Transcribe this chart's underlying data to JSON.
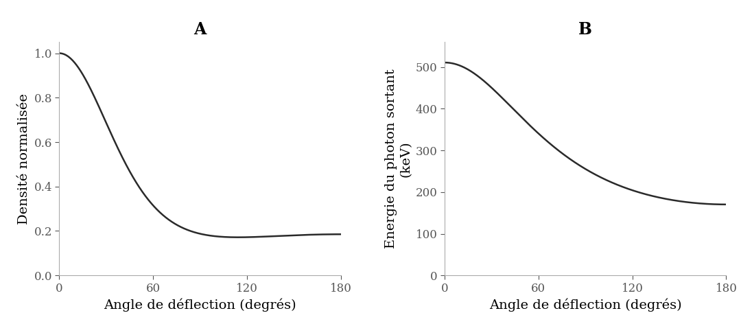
{
  "panel_A_title": "A",
  "panel_B_title": "B",
  "xlabel": "Angle de déflection (degrés)",
  "ylabel_A": "Densité normalisée",
  "ylabel_B": "Energie du photon sortant\n(keV)",
  "xlim": [
    0,
    180
  ],
  "ylim_A": [
    0.0,
    1.05
  ],
  "ylim_B": [
    0,
    560
  ],
  "xticks": [
    0,
    60,
    120,
    180
  ],
  "yticks_A": [
    0.0,
    0.2,
    0.4,
    0.6,
    0.8,
    1.0
  ],
  "yticks_B": [
    0,
    100,
    200,
    300,
    400,
    500
  ],
  "E0_keV": 511.0,
  "line_color": "#2a2a2a",
  "line_width": 1.8,
  "background_color": "#ffffff",
  "title_fontsize": 17,
  "label_fontsize": 14,
  "tick_fontsize": 12,
  "font_family": "serif"
}
